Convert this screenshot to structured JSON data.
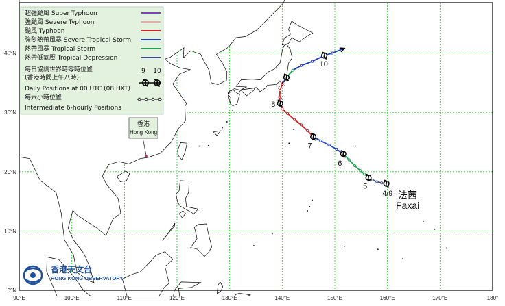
{
  "map": {
    "lon_labels": [
      "90°E",
      "100°E",
      "110°E",
      "120°E",
      "130°E",
      "140°E",
      "150°E",
      "160°E",
      "170°E",
      "180°"
    ],
    "lat_labels": [
      "0°N",
      "10°N",
      "20°N",
      "30°N",
      "40°N"
    ],
    "grid": true,
    "colors": {
      "land": "#ffffff",
      "sea": "#ffffff",
      "grid": "#2bd62b",
      "coast": "#000000"
    }
  },
  "legend": {
    "background": "#e3f2df",
    "items": [
      {
        "label": "超強颱風 Super Typhoon",
        "color": "#7f3fbf"
      },
      {
        "label": "強颱風 Severe Typhoon",
        "color": "#f4a6a6"
      },
      {
        "label": "颱風  Typhoon",
        "color": "#d62020"
      },
      {
        "label": "強烈熱帶風暴 Severe Tropical Storm",
        "color": "#1f3fbf"
      },
      {
        "label": "熱帶風暴 Tropical Storm",
        "color": "#1aa84c"
      },
      {
        "label": "熱帶低氣壓  Tropical Depression",
        "color": "#3b4a8a"
      }
    ],
    "daily_title_zh": "每日協調世界時零時位置",
    "daily_title_zh_2": "(香港時間上午八時)",
    "daily_title_en": "Daily Positions at 00 UTC (08 HKT)",
    "daily_example_labels": [
      "9",
      "10"
    ],
    "six_hourly_zh": "每六小時位置",
    "six_hourly_en": "Intermediate 6-hourly Positions"
  },
  "storm": {
    "name_zh": "法茜",
    "name_en": "Faxai",
    "track": [
      {
        "lon": 159.8,
        "lat": 18.0,
        "intensity": "Tropical Depression"
      },
      {
        "lon": 158.9,
        "lat": 18.1,
        "intensity": "Tropical Depression"
      },
      {
        "lon": 158.0,
        "lat": 18.3,
        "intensity": "Tropical Depression"
      },
      {
        "lon": 157.2,
        "lat": 18.6,
        "intensity": "Tropical Depression"
      },
      {
        "lon": 156.4,
        "lat": 19.0,
        "intensity": "Tropical Storm"
      },
      {
        "lon": 155.6,
        "lat": 19.6,
        "intensity": "Tropical Storm"
      },
      {
        "lon": 154.8,
        "lat": 20.2,
        "intensity": "Tropical Storm"
      },
      {
        "lon": 153.8,
        "lat": 21.0,
        "intensity": "Tropical Storm"
      },
      {
        "lon": 152.7,
        "lat": 22.0,
        "intensity": "Tropical Storm"
      },
      {
        "lon": 151.6,
        "lat": 23.0,
        "intensity": "Tropical Storm"
      },
      {
        "lon": 150.3,
        "lat": 23.8,
        "intensity": "Severe Tropical Storm"
      },
      {
        "lon": 148.9,
        "lat": 24.5,
        "intensity": "Severe Tropical Storm"
      },
      {
        "lon": 147.3,
        "lat": 25.2,
        "intensity": "Severe Tropical Storm"
      },
      {
        "lon": 145.9,
        "lat": 25.9,
        "intensity": "Severe Tropical Storm"
      },
      {
        "lon": 144.8,
        "lat": 26.9,
        "intensity": "Typhoon"
      },
      {
        "lon": 143.6,
        "lat": 27.9,
        "intensity": "Typhoon"
      },
      {
        "lon": 142.3,
        "lat": 28.8,
        "intensity": "Typhoon"
      },
      {
        "lon": 141.0,
        "lat": 29.8,
        "intensity": "Typhoon"
      },
      {
        "lon": 140.0,
        "lat": 30.6,
        "intensity": "Typhoon"
      },
      {
        "lon": 139.6,
        "lat": 31.5,
        "intensity": "Typhoon"
      },
      {
        "lon": 139.5,
        "lat": 32.6,
        "intensity": "Typhoon"
      },
      {
        "lon": 139.6,
        "lat": 33.7,
        "intensity": "Typhoon"
      },
      {
        "lon": 140.0,
        "lat": 34.8,
        "intensity": "Typhoon"
      },
      {
        "lon": 140.8,
        "lat": 35.9,
        "intensity": "Severe Tropical Storm"
      },
      {
        "lon": 142.0,
        "lat": 37.1,
        "intensity": "Tropical Storm"
      },
      {
        "lon": 143.6,
        "lat": 37.9,
        "intensity": "Severe Tropical Storm"
      },
      {
        "lon": 145.7,
        "lat": 38.6,
        "intensity": "Severe Tropical Storm"
      },
      {
        "lon": 148.0,
        "lat": 39.6,
        "intensity": "Severe Tropical Storm"
      },
      {
        "lon": 149.5,
        "lat": 40.0,
        "intensity": "Severe Tropical Storm"
      },
      {
        "lon": 151.8,
        "lat": 40.8,
        "intensity": "Severe Tropical Storm"
      }
    ],
    "daily_positions": [
      {
        "label": "4/9",
        "lon": 159.8,
        "lat": 18.0
      },
      {
        "label": "5",
        "lon": 156.4,
        "lat": 19.0
      },
      {
        "label": "6",
        "lon": 151.6,
        "lat": 23.0
      },
      {
        "label": "7",
        "lon": 145.9,
        "lat": 25.9
      },
      {
        "label": "8",
        "lon": 139.6,
        "lat": 31.5
      },
      {
        "label": "9",
        "lon": 140.8,
        "lat": 35.9
      },
      {
        "label": "10",
        "lon": 148.0,
        "lat": 39.6
      }
    ]
  },
  "hong_kong": {
    "label_zh": "香港",
    "label_en": "Hong Kong",
    "lon": 114.2,
    "lat": 22.3
  },
  "logo": {
    "zh": "香港天文台",
    "en": "HONG KONG OBSERVATORY"
  }
}
